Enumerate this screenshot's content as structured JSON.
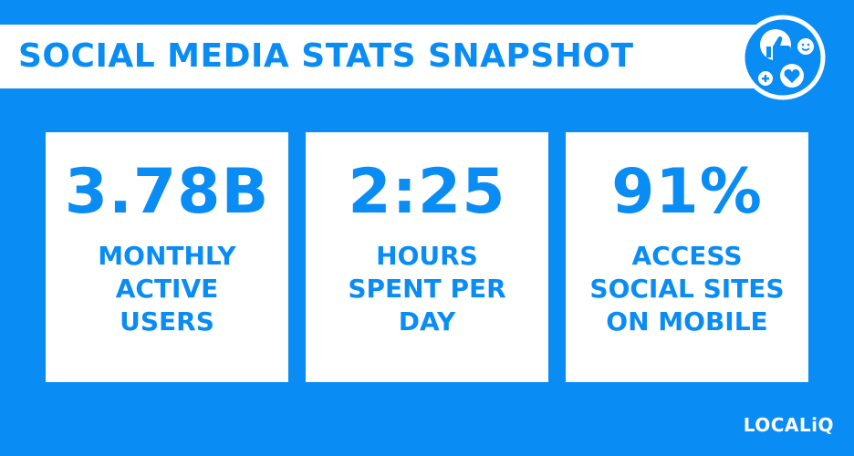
{
  "title": "SOCIAL MEDIA STATS SNAPSHOT",
  "badge_icon": "social-reactions-icon",
  "colors": {
    "background": "#0a8cf5",
    "card": "#ffffff",
    "accent": "#0a8cf5"
  },
  "stats": [
    {
      "value": "3.78B",
      "label_lines": [
        "MONTHLY",
        "ACTIVE",
        "USERS"
      ]
    },
    {
      "value": "2:25",
      "label_lines": [
        "HOURS",
        "SPENT PER",
        "DAY"
      ]
    },
    {
      "value": "91%",
      "label_lines": [
        "ACCESS",
        "SOCIAL SITES",
        "ON MOBILE"
      ]
    }
  ],
  "brand": "LOCALiQ"
}
